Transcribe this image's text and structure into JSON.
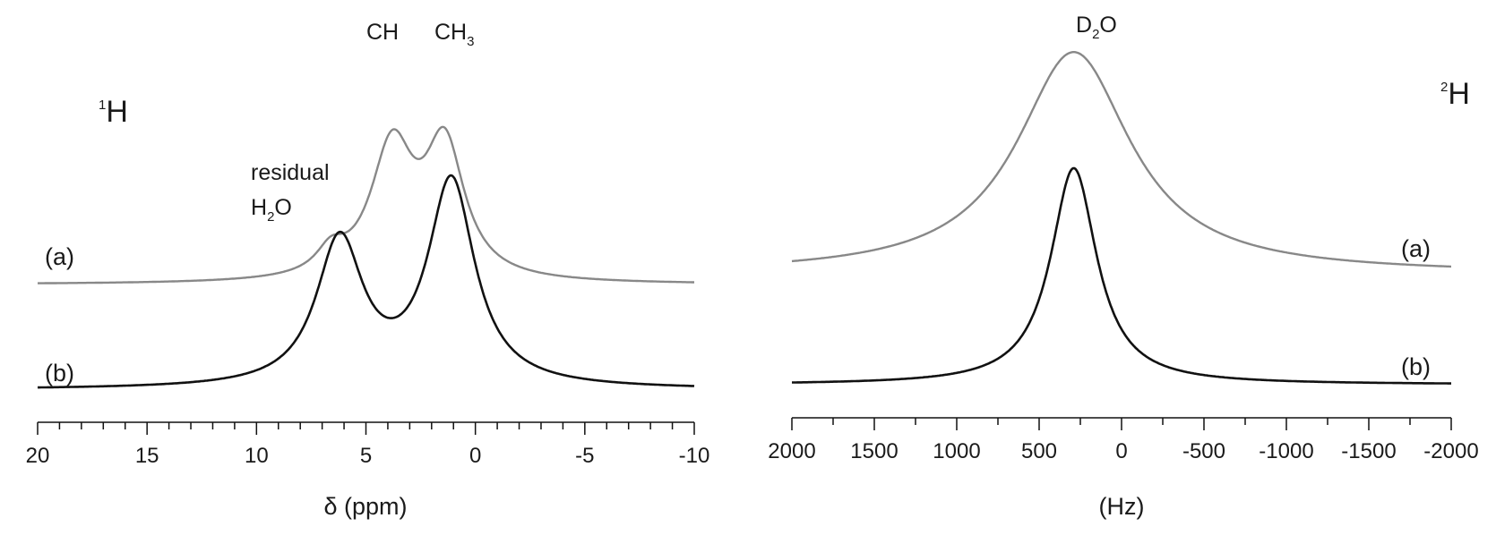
{
  "chart_data": [
    {
      "type": "line",
      "nucleus": {
        "sup": "1",
        "base": "H"
      },
      "xlabel": {
        "symbol": "δ",
        "rest": " (ppm)"
      },
      "xlim": [
        20,
        -10
      ],
      "xticks": [
        "20",
        "15",
        "10",
        "5",
        "0",
        "-5",
        "-10"
      ],
      "tick_values": [
        20,
        15,
        10,
        5,
        0,
        -5,
        -10
      ],
      "minor_step": 1,
      "colors": {
        "a": "#888888",
        "b": "#111111"
      },
      "annotations": {
        "residual": "residual",
        "h2o": {
          "base1": "H",
          "sub": "2",
          "base2": "O"
        },
        "ch": "CH",
        "ch3": {
          "base": "CH",
          "sub": "3"
        }
      },
      "series": [
        {
          "name": "(a)",
          "baseline": 0.0,
          "peaks": [
            {
              "center": 6.6,
              "height": 0.09,
              "width": 0.8
            },
            {
              "center": 3.8,
              "height": 0.52,
              "width": 1.2
            },
            {
              "center": 1.4,
              "height": 0.52,
              "width": 1.1
            }
          ]
        },
        {
          "name": "(b)",
          "baseline": -0.42,
          "peaks": [
            {
              "center": 6.2,
              "height": 0.58,
              "width": 1.3
            },
            {
              "center": 1.1,
              "height": 0.82,
              "width": 1.3
            }
          ]
        }
      ]
    },
    {
      "type": "line",
      "nucleus": {
        "sup": "2",
        "base": "H"
      },
      "xlabel": {
        "symbol": "",
        "rest": "(Hz)"
      },
      "xlim": [
        2000,
        -2000
      ],
      "xticks": [
        "2000",
        "1500",
        "1000",
        "500",
        "0",
        "-500",
        "-1000",
        "-1500",
        "-2000"
      ],
      "tick_values": [
        2000,
        1500,
        1000,
        500,
        0,
        -500,
        -1000,
        -1500,
        -2000
      ],
      "minor_step": 250,
      "colors": {
        "a": "#888888",
        "b": "#111111"
      },
      "annotations": {
        "d2o": {
          "base1": "D",
          "sub": "2",
          "base2": "O"
        }
      },
      "series": [
        {
          "name": "(a)",
          "baseline": 0.0,
          "peaks": [
            {
              "center": 290,
              "height": 0.84,
              "width": 420
            }
          ]
        },
        {
          "name": "(b)",
          "baseline": -0.42,
          "peaks": [
            {
              "center": 290,
              "height": 0.82,
              "width": 170
            }
          ]
        }
      ]
    }
  ]
}
